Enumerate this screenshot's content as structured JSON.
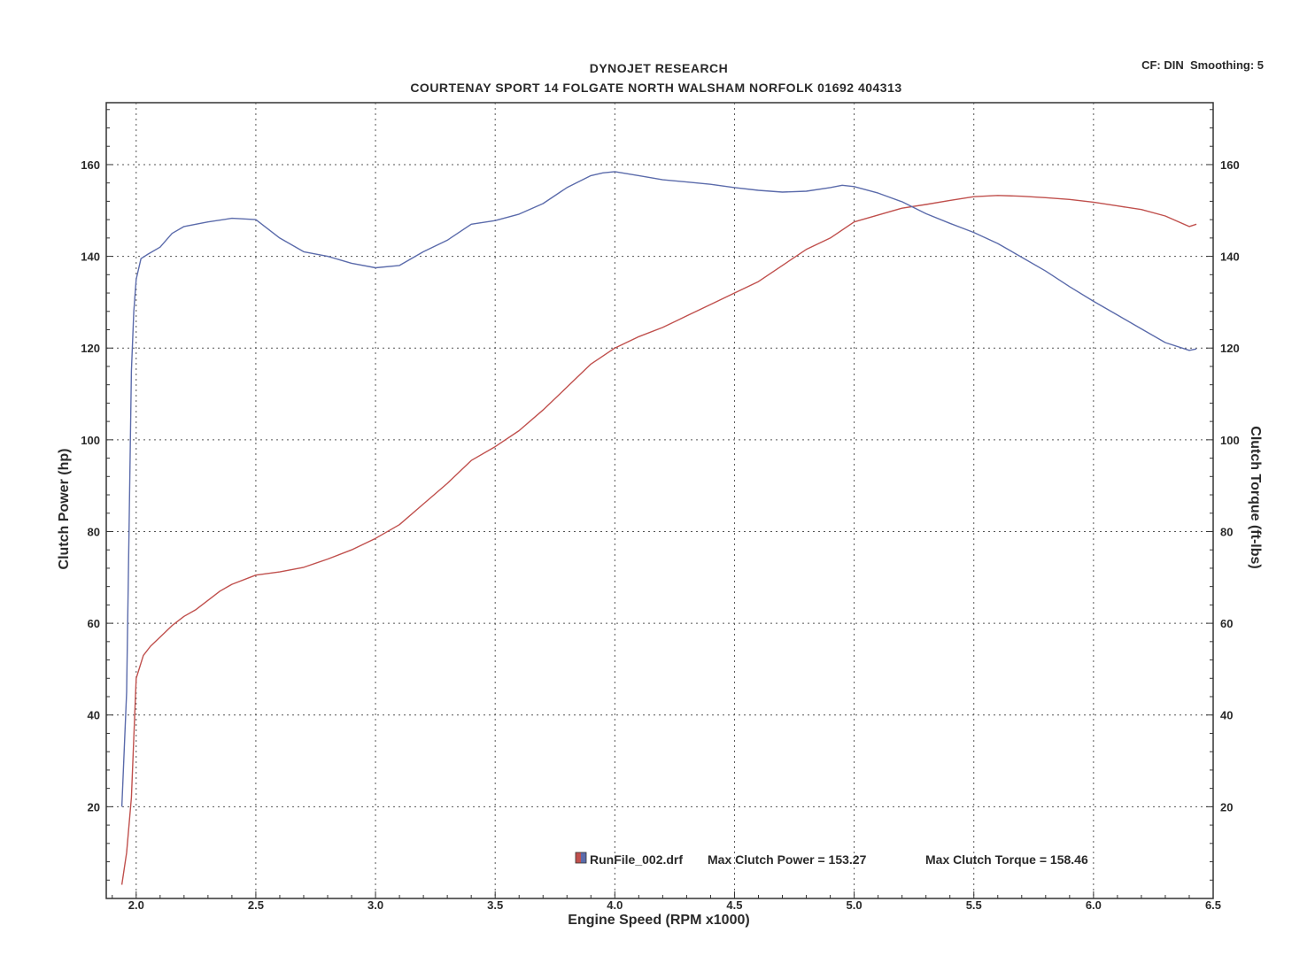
{
  "header": {
    "title_line1": "DYNOJET RESEARCH",
    "title_line2": "COURTENAY SPORT 14 FOLGATE NORTH WALSHAM NORFOLK 01692 404313",
    "corner_info": "CF: DIN  Smoothing: 5"
  },
  "legend": {
    "run_file": "RunFile_002.drf",
    "max_power_text": "Max Clutch Power = 153.27",
    "max_torque_text": "Max Clutch Torque = 158.46"
  },
  "colors": {
    "power": "#c0504d",
    "torque": "#5b6bab",
    "grid": "#555555",
    "frame": "#333333"
  },
  "chart_data": {
    "type": "line",
    "title": "DYNOJET RESEARCH",
    "subtitle": "COURTENAY SPORT 14 FOLGATE NORTH WALSHAM NORFOLK 01692 404313",
    "xlabel": "Engine Speed (RPM x1000)",
    "ylabel_left": "Clutch Power (hp)",
    "ylabel_right": "Clutch Torque (ft-lbs)",
    "xlim": [
      1.875,
      6.5
    ],
    "ylim_left": [
      0,
      173.5
    ],
    "ylim_right": [
      0,
      173.5
    ],
    "x_ticks": [
      "2.0",
      "2.5",
      "3.0",
      "3.5",
      "4.0",
      "4.5",
      "5.0",
      "5.5",
      "6.0",
      "6.5"
    ],
    "x_tick_values": [
      2.0,
      2.5,
      3.0,
      3.5,
      4.0,
      4.5,
      5.0,
      5.5,
      6.0,
      6.5
    ],
    "y_ticks_left": [
      "20",
      "40",
      "60",
      "80",
      "100",
      "120",
      "140",
      "160"
    ],
    "y_ticks_right": [
      "20",
      "40",
      "60",
      "80",
      "100",
      "120",
      "140",
      "160"
    ],
    "y_tick_values": [
      20,
      40,
      60,
      80,
      100,
      120,
      140,
      160
    ],
    "grid": true,
    "legend_position": "bottom-center",
    "series": [
      {
        "axis": "left",
        "x": [
          1.94,
          1.96,
          1.98,
          1.99,
          2.0,
          2.03,
          2.06,
          2.1,
          2.15,
          2.2,
          2.25,
          2.3,
          2.35,
          2.4,
          2.5,
          2.6,
          2.7,
          2.8,
          2.9,
          3.0,
          3.1,
          3.2,
          3.3,
          3.4,
          3.5,
          3.6,
          3.7,
          3.8,
          3.9,
          4.0,
          4.1,
          4.2,
          4.3,
          4.4,
          4.5,
          4.6,
          4.7,
          4.8,
          4.9,
          5.0,
          5.1,
          5.2,
          5.3,
          5.4,
          5.5,
          5.6,
          5.7,
          5.8,
          5.9,
          6.0,
          6.1,
          6.2,
          6.3,
          6.4,
          6.43
        ],
        "y": [
          3,
          10,
          22,
          35,
          48,
          53,
          55,
          57,
          59.5,
          61.5,
          63,
          65,
          67,
          68.5,
          70.5,
          71.2,
          72.2,
          74,
          76,
          78.5,
          81.5,
          86,
          90.5,
          95.5,
          98.5,
          102,
          106.5,
          111.5,
          116.5,
          120,
          122.5,
          124.5,
          127,
          129.5,
          132,
          134.5,
          138,
          141.5,
          144,
          147.5,
          149,
          150.5,
          151.3,
          152.2,
          153,
          153.27,
          153.1,
          152.8,
          152.4,
          151.8,
          151,
          150.2,
          148.8,
          146.5,
          147
        ]
      },
      {
        "axis": "right",
        "x": [
          1.94,
          1.96,
          1.97,
          1.98,
          1.99,
          2.0,
          2.02,
          2.05,
          2.1,
          2.15,
          2.2,
          2.3,
          2.4,
          2.5,
          2.6,
          2.7,
          2.8,
          2.9,
          3.0,
          3.1,
          3.2,
          3.3,
          3.4,
          3.5,
          3.6,
          3.7,
          3.8,
          3.9,
          3.95,
          4.0,
          4.1,
          4.2,
          4.3,
          4.4,
          4.5,
          4.6,
          4.7,
          4.8,
          4.9,
          4.95,
          5.0,
          5.1,
          5.2,
          5.3,
          5.4,
          5.5,
          5.6,
          5.7,
          5.8,
          5.9,
          6.0,
          6.1,
          6.2,
          6.3,
          6.4,
          6.43
        ],
        "y": [
          20,
          45,
          80,
          115,
          128,
          135,
          139.5,
          140.5,
          142,
          145,
          146.5,
          147.5,
          148.3,
          148,
          144,
          141,
          140,
          138.5,
          137.5,
          138,
          141,
          143.5,
          147,
          147.8,
          149.2,
          151.5,
          155,
          157.6,
          158.2,
          158.46,
          157.6,
          156.7,
          156.2,
          155.7,
          155,
          154.4,
          154,
          154.2,
          155,
          155.5,
          155.2,
          153.8,
          151.9,
          149.3,
          147.2,
          145.2,
          142.8,
          139.8,
          136.8,
          133.4,
          130.2,
          127.2,
          124.2,
          121.2,
          119.5,
          119.8
        ]
      }
    ]
  }
}
